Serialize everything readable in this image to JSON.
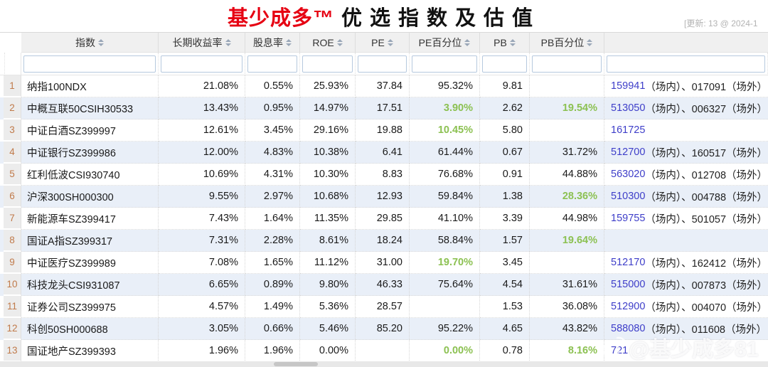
{
  "title": {
    "brand": "基少成多™",
    "rest": "优选指数及估值",
    "update_note": "[更新: 13 @ 2024-1"
  },
  "colors": {
    "accent_red": "#e60012",
    "highlight_green": "#8cc152",
    "code_link_blue": "#3e3ec9",
    "row_alt_blue": "#e9eff8",
    "row_number_orange": "#c07a4a",
    "header_gray": "#f0f0f0"
  },
  "table": {
    "columns": [
      {
        "label": "指数",
        "sortable": true
      },
      {
        "label": "长期收益率",
        "sortable": true
      },
      {
        "label": "股息率",
        "sortable": true
      },
      {
        "label": "ROE",
        "sortable": true
      },
      {
        "label": "PE",
        "sortable": true
      },
      {
        "label": "PE百分位",
        "sortable": true
      },
      {
        "label": "PB",
        "sortable": true
      },
      {
        "label": "PB百分位",
        "sortable": true
      },
      {
        "label": "",
        "sortable": false
      }
    ],
    "rows": [
      {
        "num": "1",
        "name": "纳指100NDX",
        "ltr": "21.08%",
        "dy": "0.55%",
        "roe": "25.93%",
        "pe": "37.84",
        "pe_pct": "95.32%",
        "pe_green": false,
        "pb": "9.81",
        "pb_pct": "",
        "pb_green": false,
        "code_inner": "159941",
        "code_rest": "（场内）、017091（场外）"
      },
      {
        "num": "2",
        "name": "中概互联50CSIH30533",
        "ltr": "13.43%",
        "dy": "0.95%",
        "roe": "14.97%",
        "pe": "17.51",
        "pe_pct": "3.90%",
        "pe_green": true,
        "pb": "2.62",
        "pb_pct": "19.54%",
        "pb_green": true,
        "code_inner": "513050",
        "code_rest": "（场内）、006327（场外）"
      },
      {
        "num": "3",
        "name": "中证白酒SZ399997",
        "ltr": "12.61%",
        "dy": "3.45%",
        "roe": "29.16%",
        "pe": "19.88",
        "pe_pct": "10.45%",
        "pe_green": true,
        "pb": "5.80",
        "pb_pct": "",
        "pb_green": false,
        "code_inner": "161725",
        "code_rest": ""
      },
      {
        "num": "4",
        "name": "中证银行SZ399986",
        "ltr": "12.00%",
        "dy": "4.83%",
        "roe": "10.38%",
        "pe": "6.41",
        "pe_pct": "61.44%",
        "pe_green": false,
        "pb": "0.67",
        "pb_pct": "31.72%",
        "pb_green": false,
        "code_inner": "512700",
        "code_rest": "（场内）、160517（场外）"
      },
      {
        "num": "5",
        "name": "红利低波CSI930740",
        "ltr": "10.69%",
        "dy": "4.31%",
        "roe": "10.30%",
        "pe": "8.83",
        "pe_pct": "76.68%",
        "pe_green": false,
        "pb": "0.91",
        "pb_pct": "44.88%",
        "pb_green": false,
        "code_inner": "563020",
        "code_rest": "（场内）、012708（场外）"
      },
      {
        "num": "6",
        "name": "沪深300SH000300",
        "ltr": "9.55%",
        "dy": "2.97%",
        "roe": "10.68%",
        "pe": "12.93",
        "pe_pct": "59.84%",
        "pe_green": false,
        "pb": "1.38",
        "pb_pct": "28.36%",
        "pb_green": true,
        "code_inner": "510300",
        "code_rest": "（场内）、004788（场外）"
      },
      {
        "num": "7",
        "name": "新能源车SZ399417",
        "ltr": "7.43%",
        "dy": "1.64%",
        "roe": "11.35%",
        "pe": "29.85",
        "pe_pct": "41.10%",
        "pe_green": false,
        "pb": "3.39",
        "pb_pct": "44.98%",
        "pb_green": false,
        "code_inner": "159755",
        "code_rest": "（场内）、501057（场外）"
      },
      {
        "num": "8",
        "name": "国证A指SZ399317",
        "ltr": "7.31%",
        "dy": "2.28%",
        "roe": "8.61%",
        "pe": "18.24",
        "pe_pct": "58.84%",
        "pe_green": false,
        "pb": "1.57",
        "pb_pct": "19.64%",
        "pb_green": true,
        "code_inner": "",
        "code_rest": ""
      },
      {
        "num": "9",
        "name": "中证医疗SZ399989",
        "ltr": "7.08%",
        "dy": "1.65%",
        "roe": "11.12%",
        "pe": "31.00",
        "pe_pct": "19.70%",
        "pe_green": true,
        "pb": "3.45",
        "pb_pct": "",
        "pb_green": false,
        "code_inner": "512170",
        "code_rest": "（场内）、162412（场外）"
      },
      {
        "num": "10",
        "name": "科技龙头CSI931087",
        "ltr": "6.65%",
        "dy": "0.89%",
        "roe": "9.80%",
        "pe": "46.33",
        "pe_pct": "75.64%",
        "pe_green": false,
        "pb": "4.54",
        "pb_pct": "31.61%",
        "pb_green": false,
        "code_inner": "515000",
        "code_rest": "（场内）、007873（场外）"
      },
      {
        "num": "11",
        "name": "证券公司SZ399975",
        "ltr": "4.57%",
        "dy": "1.49%",
        "roe": "5.36%",
        "pe": "28.57",
        "pe_pct": "",
        "pe_green": false,
        "pb": "1.53",
        "pb_pct": "36.08%",
        "pb_green": false,
        "code_inner": "512900",
        "code_rest": "（场内）、004070（场外）"
      },
      {
        "num": "12",
        "name": "科创50SH000688",
        "ltr": "3.05%",
        "dy": "0.66%",
        "roe": "5.46%",
        "pe": "85.20",
        "pe_pct": "95.22%",
        "pe_green": false,
        "pb": "4.65",
        "pb_pct": "43.82%",
        "pb_green": false,
        "code_inner": "588080",
        "code_rest": "（场内）、011608（场外）"
      },
      {
        "num": "13",
        "name": "国证地产SZ399393",
        "ltr": "1.96%",
        "dy": "1.96%",
        "roe": "0.00%",
        "pe": "",
        "pe_pct": "0.00%",
        "pe_green": true,
        "pb": "0.78",
        "pb_pct": "8.16%",
        "pb_green": true,
        "code_inner": "721",
        "code_rest": ""
      }
    ]
  },
  "watermark": {
    "handle": "@基少成多81",
    "icon": "weibo-eye-icon"
  }
}
